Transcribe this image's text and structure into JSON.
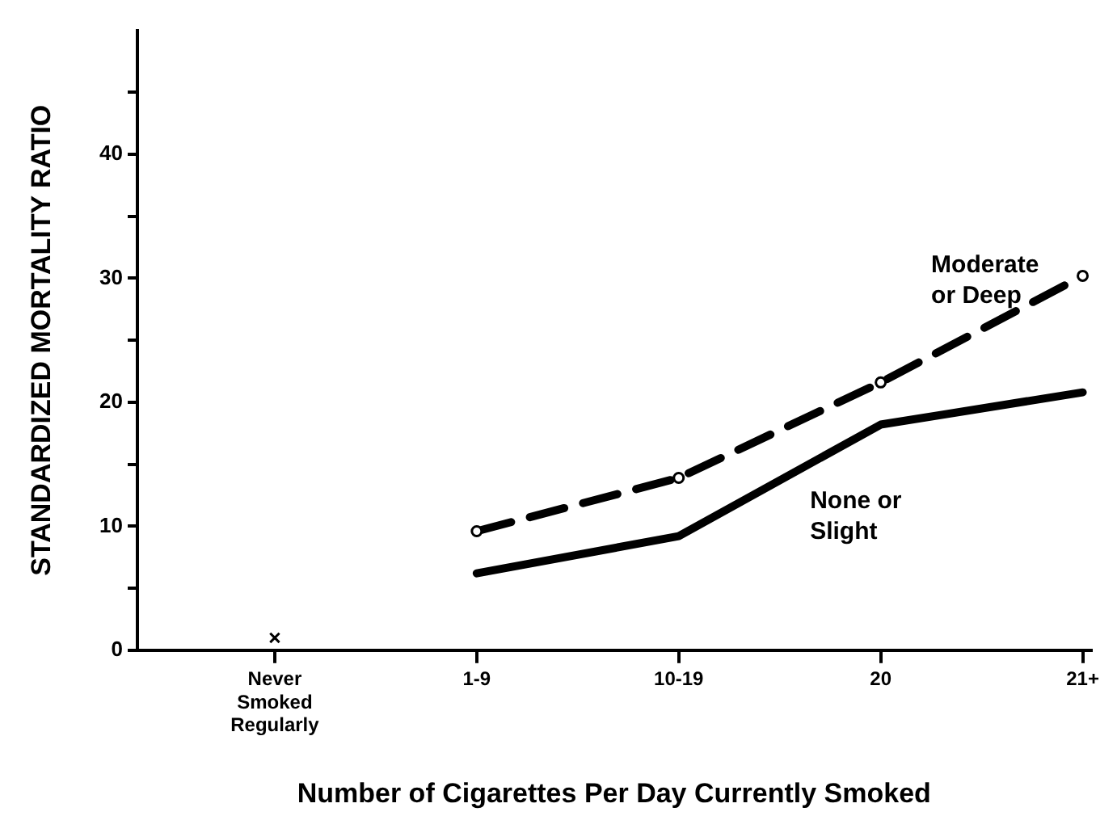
{
  "chart_data": {
    "type": "line",
    "xlabel": "Number of Cigarettes Per Day Currently Smoked",
    "ylabel": "STANDARDIZED MORTALITY RATIO",
    "categories": [
      "Never Smoked Regularly",
      "1-9",
      "10-19",
      "20",
      "21+"
    ],
    "series": [
      {
        "name": "Moderate or Deep",
        "color": "#000000",
        "values": [
          null,
          9.6,
          13.9,
          21.6,
          30.2
        ],
        "line_style": "dashed",
        "marker": "circle"
      },
      {
        "name": "None or Slight",
        "color": "#000000",
        "values": [
          null,
          6.2,
          9.2,
          18.2,
          20.8
        ],
        "line_style": "solid",
        "marker": "none"
      },
      {
        "type": "scatter",
        "color": "#000000",
        "values": [
          1,
          null,
          null,
          null,
          null
        ],
        "marker": "cross"
      }
    ],
    "ylim": [
      0,
      50
    ],
    "yticks": [
      0,
      {
        "value": 5,
        "label": null
      },
      10,
      {
        "value": 15,
        "label": null
      },
      20,
      {
        "value": 25,
        "label": null
      },
      30,
      {
        "value": 35,
        "label": null
      },
      40,
      {
        "value": 45,
        "label": null
      }
    ],
    "grid": false,
    "legend": false
  }
}
